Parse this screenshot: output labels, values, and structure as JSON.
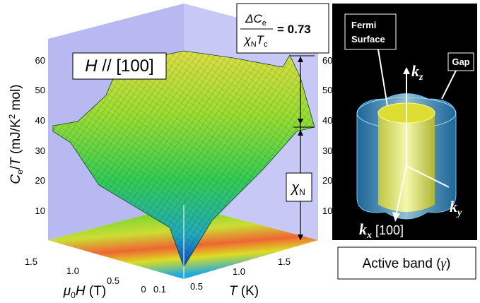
{
  "surface_plot": {
    "label_box": {
      "main": "H",
      "rest": " // [100]"
    },
    "ratio": {
      "numerator": "ΔC",
      "numerator_sub": "e",
      "denominator": "χ",
      "denominator_sub1": "N",
      "denominator_mid": "T",
      "denominator_sub2": "c",
      "value": "= 0.73"
    },
    "y_axis": {
      "label_main": "C",
      "label_sub": "e",
      "label_slash": "/",
      "label_t": "T",
      "label_rest": " (mJ/K",
      "label_sup": "2",
      "label_end": " mol)",
      "ticks_left": [
        "60",
        "50",
        "40",
        "30",
        "20",
        "10"
      ],
      "ticks_right": [
        "60",
        "50",
        "40",
        "30",
        "20",
        "10"
      ]
    },
    "chi_label": {
      "main": "χ",
      "sub": "N"
    },
    "field_axis": {
      "ticks": [
        "1.5",
        "1.0",
        "0.5",
        "0"
      ],
      "label_main": "μ",
      "label_sub": "0",
      "label_h": "H",
      "label_rest": " (T)"
    },
    "temp_axis": {
      "ticks": [
        "0.1",
        "0.5",
        "1.0",
        "1.5"
      ],
      "label_main": "T",
      "label_rest": " (K)"
    }
  },
  "fermi_diagram": {
    "fermi_label": [
      "Fermi",
      "Surface"
    ],
    "gap_label": "Gap",
    "kz": {
      "main": "k",
      "sub": "z"
    },
    "ky": {
      "main": "k",
      "sub": "y"
    },
    "kx": {
      "main": "k",
      "sub": "x",
      "rest": " [100]"
    },
    "caption": {
      "main": "Active band (",
      "symbol": "γ",
      "end": ")"
    }
  }
}
